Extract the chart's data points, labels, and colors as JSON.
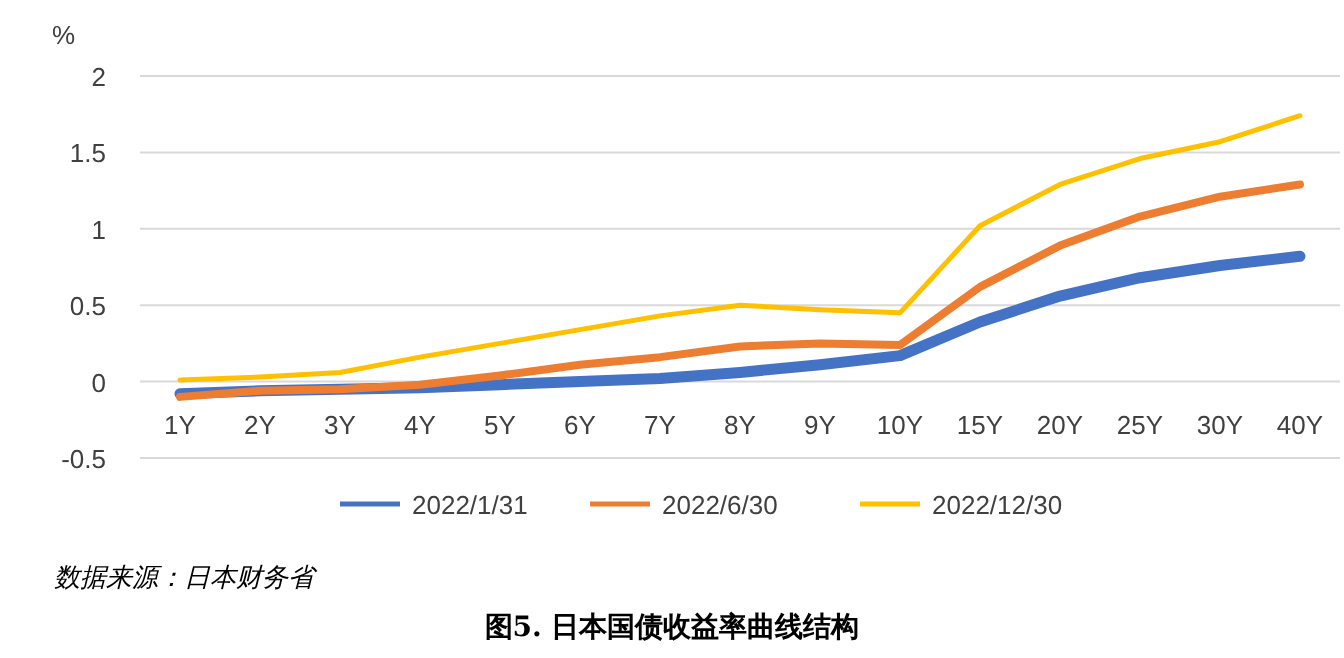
{
  "chart_data": {
    "type": "line",
    "title": "图5. 日本国债收益率曲线结构",
    "ylabel": "%",
    "annotations": [
      "数据来源：日本财务省"
    ],
    "categories": [
      "1Y",
      "2Y",
      "3Y",
      "4Y",
      "5Y",
      "6Y",
      "7Y",
      "8Y",
      "9Y",
      "10Y",
      "15Y",
      "20Y",
      "25Y",
      "30Y",
      "40Y"
    ],
    "series": [
      {
        "name": "2022/1/31",
        "color": "#4472c4",
        "values": [
          -0.08,
          -0.06,
          -0.05,
          -0.04,
          -0.02,
          0.0,
          0.02,
          0.06,
          0.11,
          0.17,
          0.39,
          0.56,
          0.68,
          0.76,
          0.82
        ]
      },
      {
        "name": "2022/6/30",
        "color": "#ed7d31",
        "values": [
          -0.1,
          -0.06,
          -0.05,
          -0.02,
          0.04,
          0.11,
          0.16,
          0.23,
          0.25,
          0.24,
          0.62,
          0.89,
          1.08,
          1.21,
          1.29
        ]
      },
      {
        "name": "2022/12/30",
        "color": "#ffc000",
        "values": [
          0.01,
          0.03,
          0.06,
          0.16,
          0.25,
          0.34,
          0.43,
          0.5,
          0.47,
          0.45,
          1.02,
          1.29,
          1.46,
          1.57,
          1.74
        ]
      }
    ],
    "ylim": [
      -0.5,
      2
    ],
    "yticks": [
      -0.5,
      0,
      0.5,
      1,
      1.5,
      2
    ],
    "grid": "y",
    "legend": "bottom",
    "marker": "none",
    "line_style": "solid"
  }
}
